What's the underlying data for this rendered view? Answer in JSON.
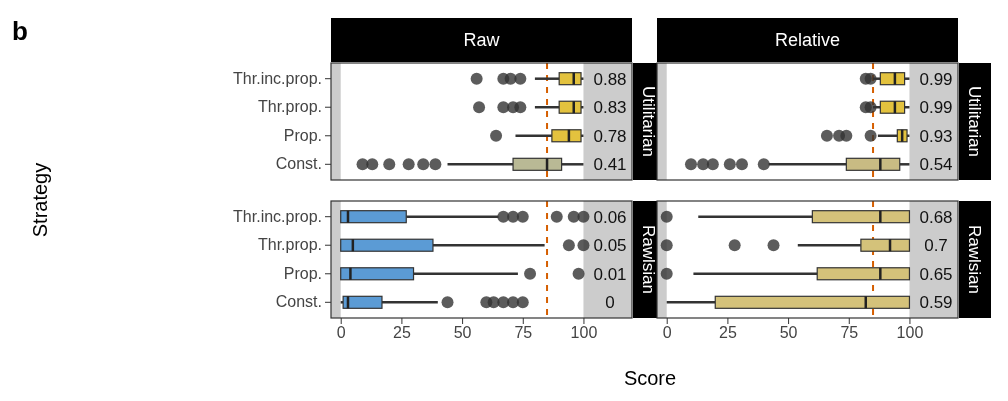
{
  "chart_data": [
    {
      "type": "box",
      "orientation": "horizontal",
      "title": "Raw",
      "y2label": "Utilitarian",
      "ylabel": "Strategy",
      "annotations": [
        "b"
      ],
      "value_labels": [
        "0.88",
        "0.83",
        "0.78",
        "0.41"
      ],
      "categories": [
        "Thr.inc.prop.",
        "Thr.prop.",
        "Prop.",
        "Const."
      ],
      "colors": [
        "#e3c23e",
        "#e3c23e",
        "#e3c23e",
        "#b9b995"
      ],
      "boxes": [
        {
          "low": 80,
          "q1": 90,
          "median": 96,
          "q3": 99,
          "high": 100,
          "outliers": [
            56,
            67,
            70,
            74
          ]
        },
        {
          "low": 80,
          "q1": 90,
          "median": 96,
          "q3": 99,
          "high": 100,
          "outliers": [
            57,
            67,
            71,
            74
          ]
        },
        {
          "low": 72,
          "q1": 87,
          "median": 94,
          "q3": 99,
          "high": 100,
          "outliers": [
            64
          ]
        },
        {
          "low": 44,
          "q1": 71,
          "median": 85,
          "q3": 91,
          "high": 100,
          "outliers": [
            9,
            13,
            20,
            28,
            34,
            39
          ]
        }
      ],
      "xlim": [
        -4,
        120
      ],
      "tick_labels": "y",
      "bands": [
        {
          "axis": "x",
          "from": -4,
          "to": 0,
          "color": "#cccccc"
        },
        {
          "axis": "x",
          "from": 100,
          "to": 120,
          "color": "#cccccc"
        }
      ],
      "ref_lines": [
        {
          "axis": "x",
          "value": 85,
          "color": "#d55e00",
          "line_style": "dashed"
        }
      ]
    },
    {
      "type": "box",
      "orientation": "horizontal",
      "title": "Relative",
      "y2label": "Utilitarian",
      "value_labels": [
        "0.99",
        "0.99",
        "0.93",
        "0.54"
      ],
      "categories": [
        null,
        null,
        null,
        null
      ],
      "colors": [
        "#e3c23e",
        "#e3c23e",
        "#e3c23e",
        "#c8bb83"
      ],
      "boxes": [
        {
          "low": 85,
          "q1": 88,
          "median": 94,
          "q3": 98,
          "high": 100,
          "outliers": [
            82,
            84
          ]
        },
        {
          "low": 85,
          "q1": 88,
          "median": 94,
          "q3": 98,
          "high": 100,
          "outliers": [
            82,
            84
          ]
        },
        {
          "low": 87,
          "q1": 95,
          "median": 97,
          "q3": 99,
          "high": 100,
          "outliers": [
            66,
            71,
            74,
            84
          ]
        },
        {
          "low": 42,
          "q1": 74,
          "median": 88,
          "q3": 96,
          "high": 100,
          "outliers": [
            10,
            15,
            19,
            26,
            31,
            40
          ]
        }
      ],
      "xlim": [
        -4,
        120
      ],
      "tick_labels": false,
      "bands": [
        {
          "axis": "x",
          "from": -4,
          "to": 0,
          "color": "#cccccc"
        },
        {
          "axis": "x",
          "from": 100,
          "to": 120,
          "color": "#cccccc"
        }
      ],
      "ref_lines": [
        {
          "axis": "x",
          "value": 85,
          "color": "#d55e00",
          "line_style": "dashed"
        }
      ]
    },
    {
      "type": "box",
      "orientation": "horizontal",
      "y2label": "Rawlsian",
      "xlabel": "Score",
      "value_labels": [
        "0.06",
        "0.05",
        "0.01",
        "0"
      ],
      "categories": [
        "Thr.inc.prop.",
        "Thr.prop.",
        "Prop.",
        "Const."
      ],
      "colors": [
        "#5b9bd5",
        "#5b9bd5",
        "#5b9bd5",
        "#5b9bd5"
      ],
      "boxes": [
        {
          "low": 0,
          "q1": 0,
          "median": 3,
          "q3": 27,
          "high": 65,
          "outliers": [
            67,
            71,
            75,
            89,
            96,
            100
          ]
        },
        {
          "low": 0,
          "q1": 0,
          "median": 5,
          "q3": 38,
          "high": 84,
          "outliers": [
            94,
            100
          ]
        },
        {
          "low": 0,
          "q1": 0,
          "median": 4,
          "q3": 30,
          "high": 73,
          "outliers": [
            78,
            98
          ]
        },
        {
          "low": 0,
          "q1": 1,
          "median": 3,
          "q3": 17,
          "high": 40,
          "outliers": [
            44,
            60,
            63,
            67,
            71,
            75
          ]
        }
      ],
      "xlim": [
        -4,
        120
      ],
      "xticks": [
        0,
        25,
        50,
        75,
        100
      ],
      "bands": [
        {
          "axis": "x",
          "from": -4,
          "to": 0,
          "color": "#cccccc"
        },
        {
          "axis": "x",
          "from": 100,
          "to": 120,
          "color": "#cccccc"
        }
      ],
      "ref_lines": [
        {
          "axis": "x",
          "value": 85,
          "color": "#d55e00",
          "line_style": "dashed"
        }
      ]
    },
    {
      "type": "box",
      "orientation": "horizontal",
      "y2label": "Rawlsian",
      "value_labels": [
        "0.68",
        "0.7",
        "0.65",
        "0.59"
      ],
      "categories": [
        null,
        null,
        null,
        null
      ],
      "colors": [
        "#d4c27a",
        "#d4c27a",
        "#d4c27a",
        "#d4c27a"
      ],
      "boxes": [
        {
          "low": 13,
          "q1": 60,
          "median": 88,
          "q3": 100,
          "high": 100,
          "outliers": [
            0
          ]
        },
        {
          "low": 54,
          "q1": 80,
          "median": 92,
          "q3": 100,
          "high": 100,
          "outliers": [
            0,
            28,
            44
          ]
        },
        {
          "low": 11,
          "q1": 62,
          "median": 88,
          "q3": 100,
          "high": 100,
          "outliers": [
            0
          ]
        },
        {
          "low": 0,
          "q1": 20,
          "median": 82,
          "q3": 100,
          "high": 100
        }
      ],
      "xlim": [
        -4,
        120
      ],
      "xticks": [
        0,
        25,
        50,
        75,
        100
      ],
      "tick_labels": "x",
      "bands": [
        {
          "axis": "x",
          "from": -4,
          "to": 0,
          "color": "#cccccc"
        },
        {
          "axis": "x",
          "from": 100,
          "to": 120,
          "color": "#cccccc"
        }
      ],
      "ref_lines": [
        {
          "axis": "x",
          "value": 85,
          "color": "#d55e00",
          "line_style": "dashed"
        }
      ]
    }
  ]
}
